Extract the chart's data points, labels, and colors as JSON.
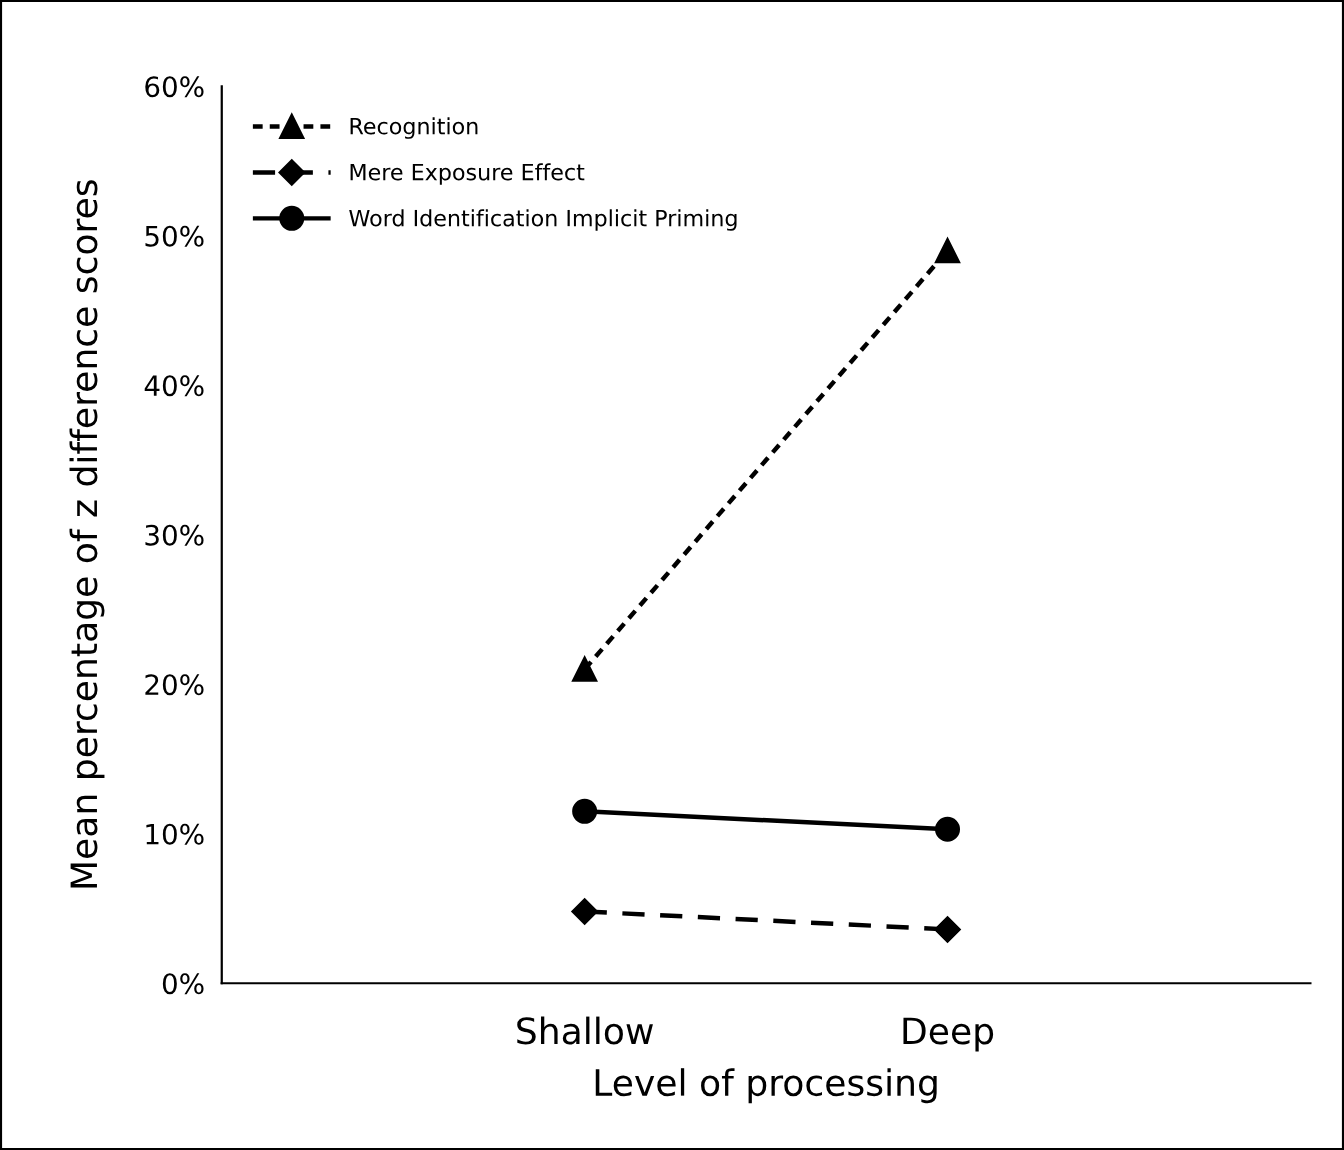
{
  "chart_data": {
    "type": "line",
    "xlabel": "Level of processing",
    "ylabel": "Mean percentage of z difference scores",
    "categories": [
      "Shallow",
      "Deep"
    ],
    "series": [
      {
        "name": "Recognition",
        "color": "#000000",
        "marker": "triangle",
        "line_style": "dotted",
        "values": [
          21,
          49
        ]
      },
      {
        "name": "Mere Exposure Effect",
        "color": "#000000",
        "marker": "diamond",
        "line_style": "dashed",
        "values": [
          4.8,
          3.6
        ]
      },
      {
        "name": "Word Identification Implicit Priming",
        "color": "#000000",
        "marker": "circle",
        "line_style": "solid",
        "values": [
          11.5,
          10.3
        ]
      }
    ],
    "ylim": [
      0,
      60
    ],
    "yticks": [
      {
        "value": 0,
        "label": "0%"
      },
      {
        "value": 10,
        "label": "10%"
      },
      {
        "value": 20,
        "label": "20%"
      },
      {
        "value": 30,
        "label": "30%"
      },
      {
        "value": 40,
        "label": "40%"
      },
      {
        "value": 50,
        "label": "50%"
      },
      {
        "value": 60,
        "label": "60%"
      }
    ],
    "grid": false,
    "legend": "top left"
  }
}
